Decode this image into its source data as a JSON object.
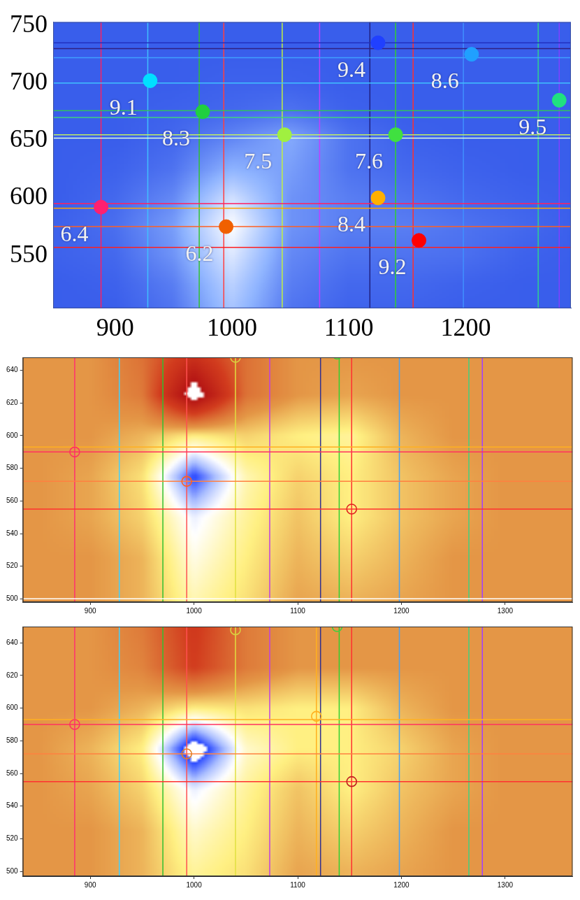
{
  "chart_data": [
    {
      "type": "heatmap",
      "xlim": [
        847,
        1290
      ],
      "ylim": [
        504,
        753
      ],
      "xticks": [
        900,
        1000,
        1100,
        1200
      ],
      "yticks": [
        550,
        600,
        650,
        700,
        750
      ],
      "grid": false,
      "marker": "circle",
      "heatmap": {
        "x": [
          850,
          900,
          950,
          1000,
          1050,
          1100,
          1150,
          1200,
          1250,
          1300
        ],
        "y": [
          500,
          525,
          550,
          575,
          600,
          625,
          650,
          675,
          700,
          725,
          750
        ],
        "zlim": [
          0,
          1
        ],
        "z": [
          [
            0.1,
            0.1,
            0.2,
            0.6,
            0.2,
            0.12,
            0.12,
            0.1,
            0.1,
            0.1
          ],
          [
            0.1,
            0.12,
            0.25,
            0.7,
            0.25,
            0.15,
            0.15,
            0.12,
            0.1,
            0.1
          ],
          [
            0.12,
            0.15,
            0.35,
            0.85,
            0.3,
            0.2,
            0.2,
            0.18,
            0.12,
            0.1
          ],
          [
            0.12,
            0.18,
            0.4,
            1.0,
            0.35,
            0.25,
            0.25,
            0.2,
            0.15,
            0.1
          ],
          [
            0.1,
            0.15,
            0.3,
            0.8,
            0.35,
            0.25,
            0.2,
            0.15,
            0.12,
            0.1
          ],
          [
            0.1,
            0.12,
            0.2,
            0.5,
            0.4,
            0.2,
            0.15,
            0.12,
            0.1,
            0.1
          ],
          [
            0.1,
            0.1,
            0.15,
            0.3,
            0.45,
            0.2,
            0.12,
            0.1,
            0.1,
            0.1
          ],
          [
            0.1,
            0.1,
            0.12,
            0.15,
            0.2,
            0.12,
            0.1,
            0.1,
            0.1,
            0.1
          ],
          [
            0.1,
            0.1,
            0.1,
            0.12,
            0.12,
            0.1,
            0.1,
            0.1,
            0.1,
            0.1
          ],
          [
            0.1,
            0.1,
            0.1,
            0.1,
            0.1,
            0.1,
            0.1,
            0.1,
            0.1,
            0.1
          ],
          [
            0.1,
            0.1,
            0.1,
            0.1,
            0.1,
            0.1,
            0.1,
            0.1,
            0.1,
            0.1
          ]
        ]
      },
      "vlines": [
        {
          "x": 888,
          "color": "#ff2060"
        },
        {
          "x": 928,
          "color": "#40c0ff"
        },
        {
          "x": 972,
          "color": "#30c030"
        },
        {
          "x": 993,
          "color": "#ff4040"
        },
        {
          "x": 1043,
          "color": "#c0f040"
        },
        {
          "x": 1075,
          "color": "#c040ff"
        },
        {
          "x": 1118,
          "color": "#202080"
        },
        {
          "x": 1140,
          "color": "#30d030"
        },
        {
          "x": 1155,
          "color": "#ff3030"
        },
        {
          "x": 1198,
          "color": "#4090ff"
        },
        {
          "x": 1262,
          "color": "#30d090"
        },
        {
          "x": 1280,
          "color": "#8040ff"
        }
      ],
      "hlines": [
        {
          "y": 735,
          "color": "#2030c0"
        },
        {
          "y": 730,
          "color": "#302080"
        },
        {
          "y": 722,
          "color": "#40a0ff"
        },
        {
          "y": 700,
          "color": "#40c0ff"
        },
        {
          "y": 676,
          "color": "#30c060"
        },
        {
          "y": 670,
          "color": "#40d080"
        },
        {
          "y": 655,
          "color": "#c0f060"
        },
        {
          "y": 652,
          "color": "#e0ffe0"
        },
        {
          "y": 595,
          "color": "#ff2060"
        },
        {
          "y": 591,
          "color": "#ffa000"
        },
        {
          "y": 575,
          "color": "#ff6020"
        },
        {
          "y": 557,
          "color": "#ff2020"
        }
      ],
      "points": [
        {
          "x": 930,
          "y": 702,
          "label": "9.1",
          "color": "#00e0ff"
        },
        {
          "x": 975,
          "y": 675,
          "label": "8.3",
          "color": "#20d040"
        },
        {
          "x": 1045,
          "y": 655,
          "label": "7.5",
          "color": "#a0f040"
        },
        {
          "x": 888,
          "y": 592,
          "label": "6.4",
          "color": "#ff2070"
        },
        {
          "x": 995,
          "y": 575,
          "label": "6.2",
          "color": "#f06000"
        },
        {
          "x": 1125,
          "y": 735,
          "label": "9.4",
          "color": "#2040ff"
        },
        {
          "x": 1205,
          "y": 725,
          "label": "8.6",
          "color": "#20a0ff"
        },
        {
          "x": 1140,
          "y": 655,
          "label": "7.6",
          "color": "#40e040"
        },
        {
          "x": 1280,
          "y": 685,
          "label": "9.5",
          "color": "#20e080"
        },
        {
          "x": 1125,
          "y": 600,
          "label": "8.4",
          "color": "#ffb000"
        },
        {
          "x": 1160,
          "y": 563,
          "label": "9.2",
          "color": "#ff0000"
        }
      ]
    },
    {
      "type": "heatmap",
      "xlim": [
        835,
        1365
      ],
      "ylim": [
        498,
        648
      ],
      "xticks": [
        900,
        1000,
        1100,
        1200,
        1300
      ],
      "yticks": [
        500,
        520,
        540,
        560,
        580,
        600,
        620,
        640
      ],
      "grid": false,
      "marker": "open_circle",
      "heatmap": {
        "x": [
          850,
          900,
          950,
          1000,
          1050,
          1100,
          1150,
          1200,
          1250,
          1300,
          1350
        ],
        "y": [
          500,
          525,
          550,
          575,
          600,
          625,
          650
        ],
        "zlim": [
          -1,
          1
        ],
        "z": [
          [
            0,
            0,
            -0.1,
            -0.4,
            -0.25,
            -0.05,
            -0.1,
            -0.05,
            0,
            0,
            0
          ],
          [
            0,
            0,
            -0.1,
            -0.5,
            -0.3,
            -0.1,
            -0.2,
            -0.1,
            0,
            0,
            0
          ],
          [
            0,
            -0.05,
            -0.2,
            -0.6,
            -0.35,
            -0.15,
            -0.3,
            -0.15,
            -0.05,
            0,
            0
          ],
          [
            0,
            -0.05,
            -0.25,
            -1,
            -0.4,
            -0.2,
            -0.3,
            -0.15,
            -0.05,
            0,
            0
          ],
          [
            0,
            0,
            -0.1,
            -0.3,
            -0.2,
            -0.3,
            -0.35,
            -0.1,
            0,
            0,
            0
          ],
          [
            0,
            0,
            0.15,
            1.2,
            0.2,
            0,
            -0.05,
            0,
            0,
            0,
            0
          ],
          [
            0,
            0,
            0.2,
            0.6,
            0.2,
            0,
            0,
            0,
            0,
            0,
            0
          ]
        ]
      },
      "vlines": [
        {
          "x": 885,
          "color": "#ff3070"
        },
        {
          "x": 928,
          "color": "#40d0ff"
        },
        {
          "x": 970,
          "color": "#30c030"
        },
        {
          "x": 993,
          "color": "#ff5050"
        },
        {
          "x": 1040,
          "color": "#e0e040"
        },
        {
          "x": 1073,
          "color": "#c040e0"
        },
        {
          "x": 1122,
          "color": "#303090"
        },
        {
          "x": 1140,
          "color": "#30d030"
        },
        {
          "x": 1152,
          "color": "#ff3030"
        },
        {
          "x": 1198,
          "color": "#40a0ff"
        },
        {
          "x": 1265,
          "color": "#40d080"
        },
        {
          "x": 1278,
          "color": "#a040ff"
        }
      ],
      "hlines": [
        {
          "y": 593,
          "color": "#ffb020"
        },
        {
          "y": 590,
          "color": "#ff3060"
        },
        {
          "y": 572,
          "color": "#ff8040"
        },
        {
          "y": 555,
          "color": "#ff3030"
        },
        {
          "y": 500,
          "color": "#ffffff"
        }
      ],
      "points": [
        {
          "x": 885,
          "y": 590,
          "color": "#ff3060"
        },
        {
          "x": 993,
          "y": 572,
          "color": "#ff6020"
        },
        {
          "x": 1152,
          "y": 555,
          "color": "#e02020"
        },
        {
          "x": 1040,
          "y": 648,
          "color": "#d8d040"
        },
        {
          "x": 1138,
          "y": 650,
          "color": "#40d040"
        }
      ]
    },
    {
      "type": "heatmap",
      "xlim": [
        835,
        1365
      ],
      "ylim": [
        497,
        650
      ],
      "xticks": [
        900,
        1000,
        1100,
        1200,
        1300
      ],
      "yticks": [
        500,
        520,
        540,
        560,
        580,
        600,
        620,
        640
      ],
      "grid": false,
      "marker": "open_circle",
      "heatmap": {
        "x": [
          850,
          900,
          950,
          1000,
          1050,
          1100,
          1150,
          1200,
          1250,
          1300,
          1350
        ],
        "y": [
          500,
          525,
          550,
          575,
          600,
          625,
          650
        ],
        "zlim": [
          -1,
          1
        ],
        "z": [
          [
            0,
            0,
            -0.1,
            -0.35,
            -0.25,
            -0.05,
            -0.1,
            -0.05,
            0,
            0,
            0
          ],
          [
            0,
            0,
            -0.1,
            -0.45,
            -0.3,
            -0.1,
            -0.2,
            -0.1,
            0,
            0,
            0
          ],
          [
            0,
            -0.05,
            -0.2,
            -0.6,
            -0.35,
            -0.15,
            -0.3,
            -0.15,
            -0.05,
            0,
            0
          ],
          [
            0,
            -0.1,
            -0.3,
            -1.2,
            -0.45,
            -0.3,
            -0.3,
            -0.2,
            -0.05,
            0,
            0
          ],
          [
            0,
            0,
            -0.1,
            -0.3,
            -0.25,
            -0.3,
            -0.3,
            -0.1,
            0,
            0,
            0
          ],
          [
            0,
            0,
            0.1,
            0.5,
            0.15,
            0,
            0,
            0,
            0,
            0,
            0
          ],
          [
            0,
            0,
            0.15,
            0.55,
            0.15,
            0,
            0,
            0,
            0,
            0,
            0
          ]
        ]
      },
      "vlines": [
        {
          "x": 885,
          "color": "#ff3070"
        },
        {
          "x": 928,
          "color": "#40d0ff"
        },
        {
          "x": 970,
          "color": "#30c030"
        },
        {
          "x": 993,
          "color": "#ff5050"
        },
        {
          "x": 1040,
          "color": "#e0e040"
        },
        {
          "x": 1073,
          "color": "#c040e0"
        },
        {
          "x": 1118,
          "color": "#ffb020"
        },
        {
          "x": 1122,
          "color": "#303090"
        },
        {
          "x": 1140,
          "color": "#30d030"
        },
        {
          "x": 1152,
          "color": "#ff3030"
        },
        {
          "x": 1198,
          "color": "#40a0ff"
        },
        {
          "x": 1265,
          "color": "#40d080"
        },
        {
          "x": 1278,
          "color": "#a040ff"
        }
      ],
      "hlines": [
        {
          "y": 593,
          "color": "#ffb020"
        },
        {
          "y": 590,
          "color": "#ff3060"
        },
        {
          "y": 572,
          "color": "#ff8040"
        },
        {
          "y": 555,
          "color": "#ff3030"
        }
      ],
      "points": [
        {
          "x": 885,
          "y": 590,
          "color": "#ff3060"
        },
        {
          "x": 993,
          "y": 572,
          "color": "#e08020"
        },
        {
          "x": 1152,
          "y": 555,
          "color": "#c02020"
        },
        {
          "x": 1040,
          "y": 648,
          "color": "#d8d040"
        },
        {
          "x": 1138,
          "y": 650,
          "color": "#40d040"
        },
        {
          "x": 1118,
          "y": 595,
          "color": "#ffb020"
        }
      ]
    }
  ]
}
